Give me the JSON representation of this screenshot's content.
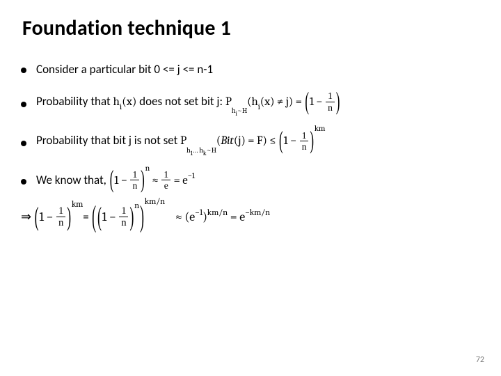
{
  "title": "Foundation technique 1",
  "bullets": {
    "b1_prefix": "Consider a particular bit 0 <= j <= n-1",
    "b2_prefix": "Probability that ",
    "b2_mid": " does not set bit j: ",
    "b3_prefix": "Probability that bit j is not set ",
    "b4_prefix": "We know that, "
  },
  "math": {
    "h_i_x": "h",
    "i": "i",
    "of_x": "(x)",
    "P": "P",
    "sub_hi_H": "h",
    "tilde_H": "~H",
    "hk": "k",
    "h1": "1",
    "dots": "…",
    "neq_j": " ≠ j",
    "eq_open": " = ",
    "one_minus": "1 − ",
    "Bit": "Bit",
    "j": "(j)",
    "eq_F": " = F",
    "leq": " ≤ ",
    "n": "n",
    "one": "1",
    "exp_km": "km",
    "approx": " ≈ ",
    "frac_1_e_num": "1",
    "frac_1_e_den": "e",
    "e": "e",
    "minus1": "−1",
    "exp_n": "n",
    "exp_km_over_n": "km/n",
    "minus_km_over_n": "−km/n",
    "implies": "⇒ "
  },
  "pagenum": "72",
  "colors": {
    "text": "#000000",
    "bg": "#ffffff",
    "pagenum": "#7a7a7a"
  }
}
